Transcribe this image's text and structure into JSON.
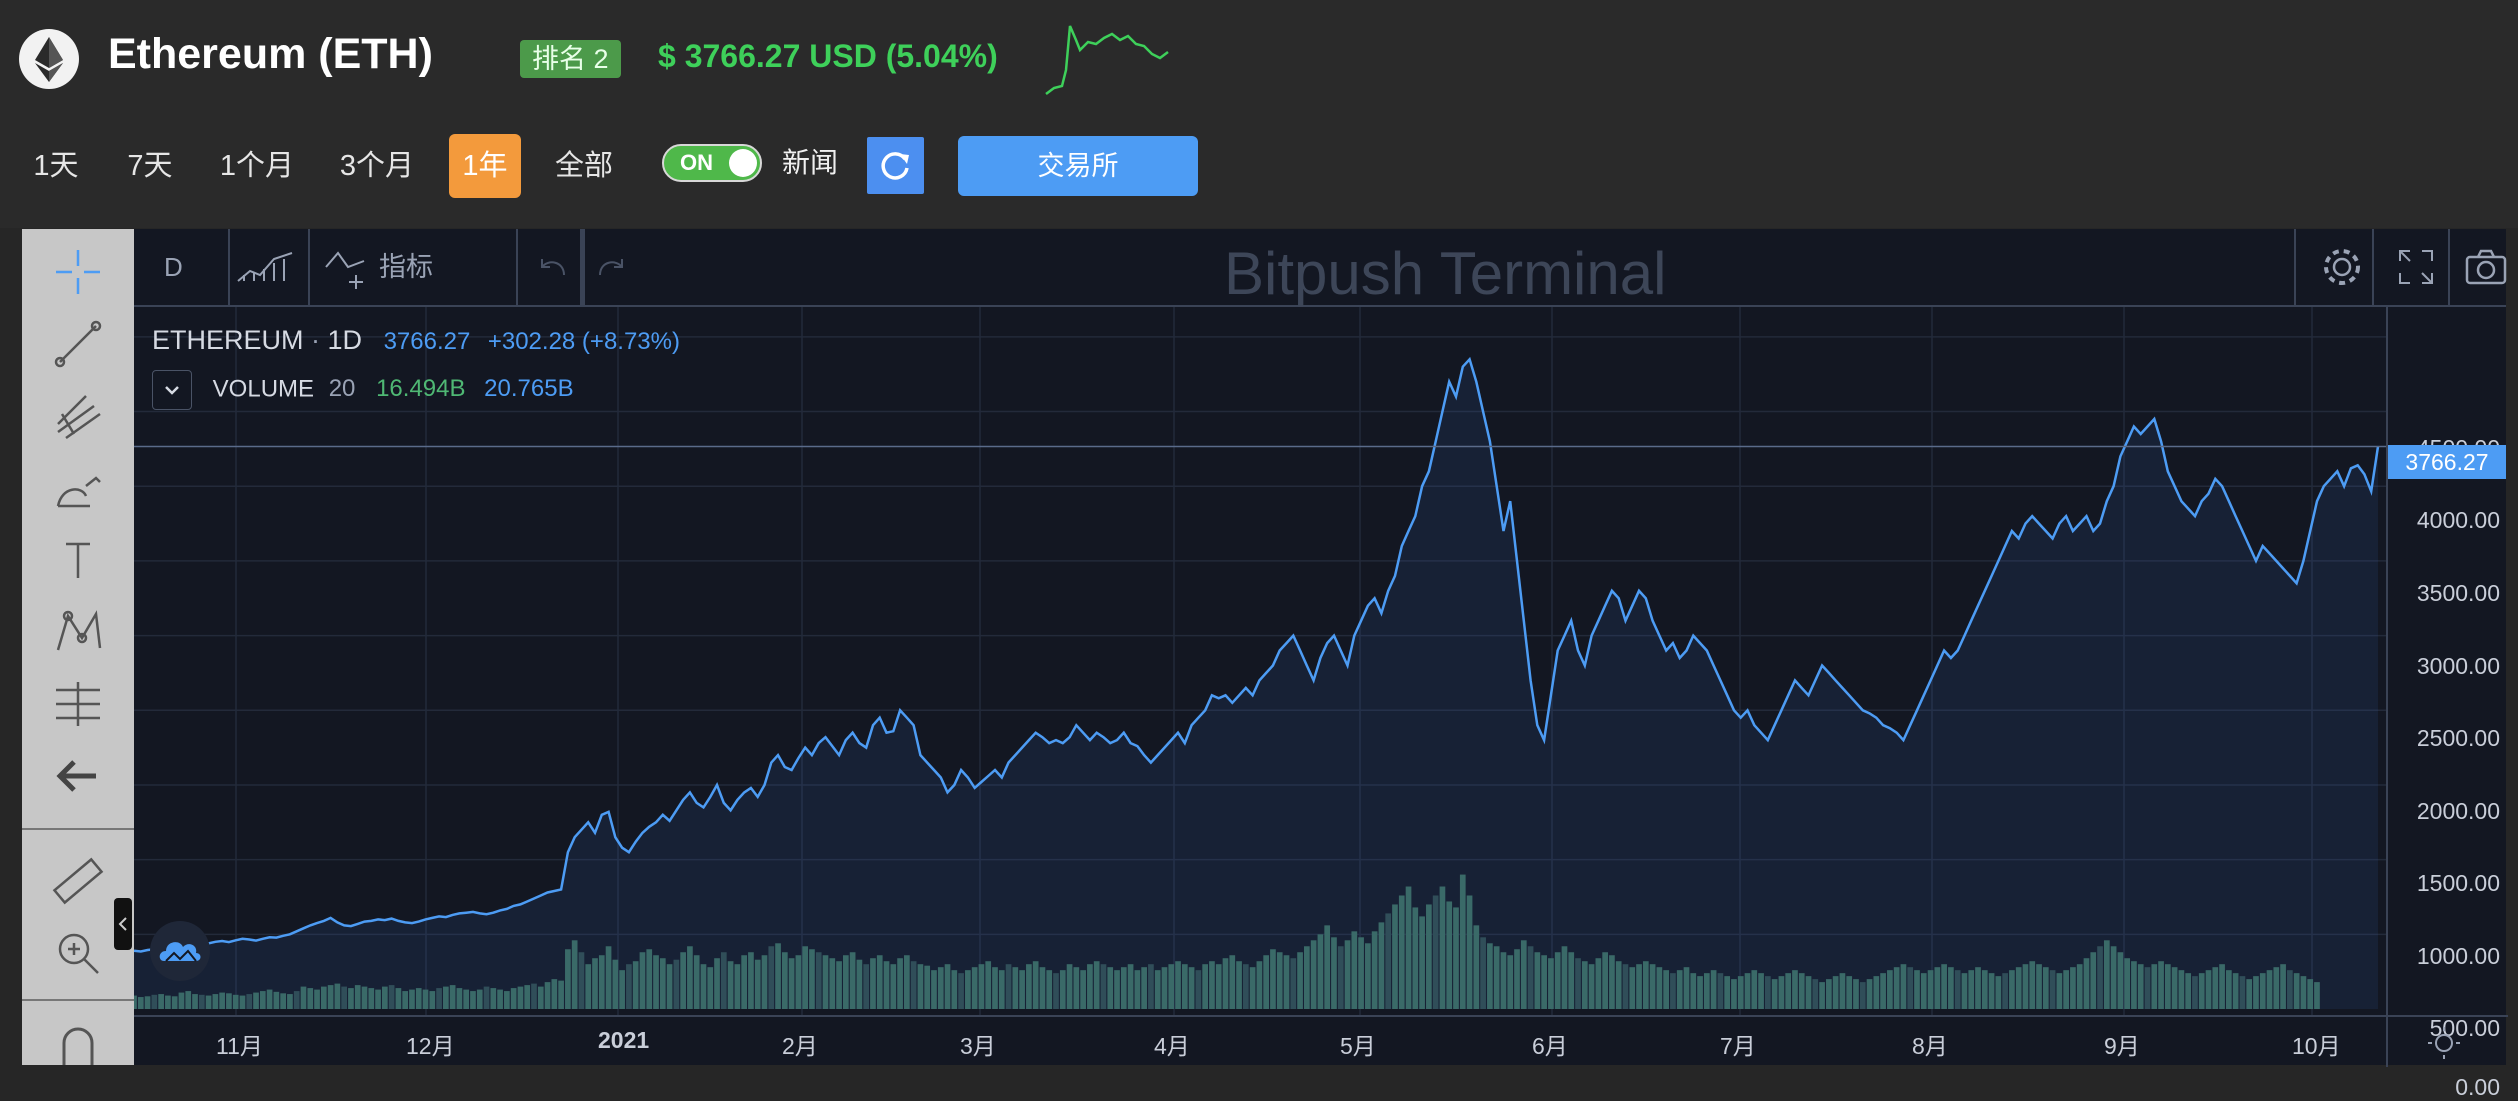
{
  "header": {
    "coin_title": "Ethereum (ETH)",
    "rank_badge": "排名 2",
    "price_text": "$ 3766.27 USD (5.04%)",
    "logo_icon": "ethereum-logo-icon",
    "colors": {
      "price_up": "#3ed05a",
      "accent": "#4d9cf4",
      "active_range": "#f39a3c"
    }
  },
  "range_buttons": [
    {
      "label": "1天",
      "active": false
    },
    {
      "label": "7天",
      "active": false
    },
    {
      "label": "1个月",
      "active": false
    },
    {
      "label": "3个月",
      "active": false
    },
    {
      "label": "1年",
      "active": true
    },
    {
      "label": "全部",
      "active": false
    }
  ],
  "news_toggle": {
    "state_label": "ON",
    "label": "新闻"
  },
  "exchange_button": "交易所",
  "terminal": {
    "interval": "D",
    "indicators_label": "指标",
    "watermark": "Bitpush Terminal",
    "legend": {
      "symbol": "ETHEREUM",
      "interval": "1D",
      "last": "3766.27",
      "change": "+302.28 (+8.73%)",
      "volume_label": "VOLUME",
      "volume_period": "20",
      "volume_value_1": "16.494B",
      "volume_value_2": "20.765B"
    },
    "last_price_tag": "3766.27",
    "price_ticks": [
      "4500.00",
      "4000.00",
      "3500.00",
      "3000.00",
      "2500.00",
      "2000.00",
      "1500.00",
      "1000.00",
      "500.00",
      "0.00"
    ],
    "time_ticks": [
      "11月",
      "12月",
      "2021",
      "2月",
      "3月",
      "4月",
      "5月",
      "6月",
      "7月",
      "8月",
      "9月",
      "10月"
    ]
  },
  "chart_data": {
    "type": "line",
    "ylim": [
      0,
      4700
    ],
    "series": [
      {
        "values": [
          390,
          385,
          395,
          400,
          392,
          388,
          410,
          420,
          415,
          430,
          445,
          440,
          450,
          455,
          448,
          460,
          470,
          465,
          458,
          470,
          480,
          478,
          490,
          500,
          520,
          540,
          560,
          575,
          590,
          610,
          580,
          560,
          555,
          570,
          585,
          590,
          600,
          595,
          605,
          590,
          580,
          575,
          585,
          600,
          610,
          620,
          615,
          630,
          640,
          645,
          650,
          640,
          635,
          645,
          660,
          670,
          690,
          700,
          720,
          740,
          760,
          780,
          790,
          800,
          1050,
          1150,
          1200,
          1250,
          1180,
          1300,
          1320,
          1150,
          1080,
          1050,
          1120,
          1180,
          1220,
          1250,
          1300,
          1260,
          1330,
          1400,
          1450,
          1380,
          1350,
          1420,
          1500,
          1380,
          1330,
          1400,
          1450,
          1480,
          1420,
          1500,
          1650,
          1700,
          1620,
          1600,
          1680,
          1750,
          1700,
          1780,
          1820,
          1760,
          1700,
          1800,
          1850,
          1780,
          1750,
          1900,
          1950,
          1850,
          1860,
          2000,
          1950,
          1900,
          1700,
          1650,
          1600,
          1550,
          1450,
          1500,
          1600,
          1550,
          1480,
          1520,
          1560,
          1600,
          1550,
          1650,
          1700,
          1750,
          1800,
          1850,
          1820,
          1780,
          1800,
          1780,
          1820,
          1900,
          1850,
          1800,
          1850,
          1820,
          1780,
          1800,
          1850,
          1780,
          1760,
          1700,
          1650,
          1700,
          1750,
          1800,
          1850,
          1780,
          1900,
          1950,
          2000,
          2100,
          2080,
          2100,
          2050,
          2100,
          2150,
          2100,
          2200,
          2250,
          2300,
          2400,
          2450,
          2500,
          2400,
          2300,
          2200,
          2350,
          2450,
          2500,
          2400,
          2300,
          2500,
          2600,
          2700,
          2750,
          2650,
          2800,
          2900,
          3100,
          3200,
          3300,
          3500,
          3600,
          3800,
          4000,
          4200,
          4100,
          4300,
          4350,
          4200,
          4000,
          3800,
          3500,
          3200,
          3400,
          3000,
          2600,
          2200,
          1900,
          1800,
          2100,
          2400,
          2500,
          2600,
          2400,
          2300,
          2500,
          2600,
          2700,
          2800,
          2750,
          2600,
          2700,
          2800,
          2750,
          2600,
          2500,
          2400,
          2450,
          2350,
          2400,
          2500,
          2450,
          2400,
          2300,
          2200,
          2100,
          2000,
          1950,
          2000,
          1900,
          1850,
          1800,
          1900,
          2000,
          2100,
          2200,
          2150,
          2100,
          2200,
          2300,
          2250,
          2200,
          2150,
          2100,
          2050,
          2000,
          1980,
          1950,
          1900,
          1880,
          1850,
          1800,
          1900,
          2000,
          2100,
          2200,
          2300,
          2400,
          2350,
          2400,
          2500,
          2600,
          2700,
          2800,
          2900,
          3000,
          3100,
          3200,
          3150,
          3250,
          3300,
          3250,
          3200,
          3150,
          3250,
          3300,
          3200,
          3250,
          3300,
          3200,
          3250,
          3400,
          3500,
          3700,
          3800,
          3900,
          3850,
          3900,
          3950,
          3800,
          3600,
          3500,
          3400,
          3350,
          3300,
          3400,
          3450,
          3550,
          3500,
          3400,
          3300,
          3200,
          3100,
          3000,
          3100,
          3050,
          3000,
          2950,
          2900,
          2850,
          3000,
          3200,
          3400,
          3500,
          3550,
          3600,
          3500,
          3620,
          3640,
          3580,
          3466,
          3766
        ]
      },
      {
        "values": [
          90,
          80,
          85,
          95,
          100,
          90,
          85,
          110,
          120,
          100,
          95,
          90,
          100,
          110,
          105,
          95,
          90,
          100,
          110,
          120,
          130,
          115,
          105,
          100,
          120,
          150,
          140,
          130,
          150,
          160,
          170,
          150,
          140,
          160,
          150,
          140,
          130,
          150,
          160,
          140,
          120,
          130,
          140,
          130,
          120,
          140,
          150,
          160,
          140,
          130,
          120,
          130,
          150,
          140,
          130,
          120,
          140,
          150,
          160,
          170,
          150,
          180,
          200,
          190,
          400,
          460,
          380,
          300,
          340,
          360,
          420,
          330,
          260,
          300,
          320,
          380,
          400,
          360,
          340,
          300,
          330,
          380,
          420,
          360,
          300,
          280,
          340,
          380,
          320,
          300,
          360,
          380,
          330,
          360,
          420,
          440,
          380,
          340,
          360,
          420,
          400,
          380,
          360,
          340,
          320,
          360,
          380,
          330,
          300,
          340,
          360,
          320,
          300,
          340,
          360,
          320,
          300,
          290,
          260,
          280,
          300,
          260,
          240,
          260,
          280,
          300,
          320,
          280,
          260,
          300,
          280,
          260,
          300,
          320,
          280,
          260,
          240,
          260,
          300,
          280,
          260,
          300,
          320,
          300,
          280,
          260,
          280,
          300,
          260,
          280,
          300,
          260,
          280,
          300,
          320,
          300,
          280,
          260,
          300,
          320,
          300,
          340,
          360,
          320,
          300,
          280,
          320,
          360,
          400,
          380,
          360,
          340,
          380,
          420,
          460,
          500,
          560,
          480,
          420,
          460,
          520,
          480,
          440,
          520,
          580,
          640,
          700,
          760,
          820,
          680,
          620,
          700,
          760,
          820,
          720,
          680,
          900,
          760,
          560,
          480,
          440,
          420,
          380,
          360,
          400,
          460,
          420,
          380,
          360,
          340,
          380,
          420,
          380,
          340,
          320,
          300,
          340,
          380,
          360,
          320,
          300,
          280,
          300,
          320,
          300,
          280,
          260,
          240,
          260,
          280,
          240,
          220,
          240,
          260,
          240,
          220,
          200,
          220,
          240,
          260,
          240,
          220,
          200,
          220,
          240,
          260,
          240,
          220,
          200,
          180,
          200,
          220,
          240,
          220,
          200,
          180,
          200,
          220,
          240,
          260,
          280,
          300,
          280,
          260,
          240,
          260,
          280,
          300,
          280,
          260,
          240,
          260,
          280,
          260,
          240,
          220,
          240,
          260,
          280,
          300,
          320,
          300,
          280,
          260,
          240,
          260,
          280,
          300,
          340,
          380,
          420,
          460,
          420,
          380,
          340,
          320,
          300,
          280,
          300,
          320,
          300,
          280,
          260,
          240,
          220,
          240,
          260,
          280,
          300,
          260,
          240,
          220,
          200,
          220,
          240,
          260,
          280,
          300,
          260,
          240,
          220,
          200,
          180
        ]
      }
    ]
  }
}
